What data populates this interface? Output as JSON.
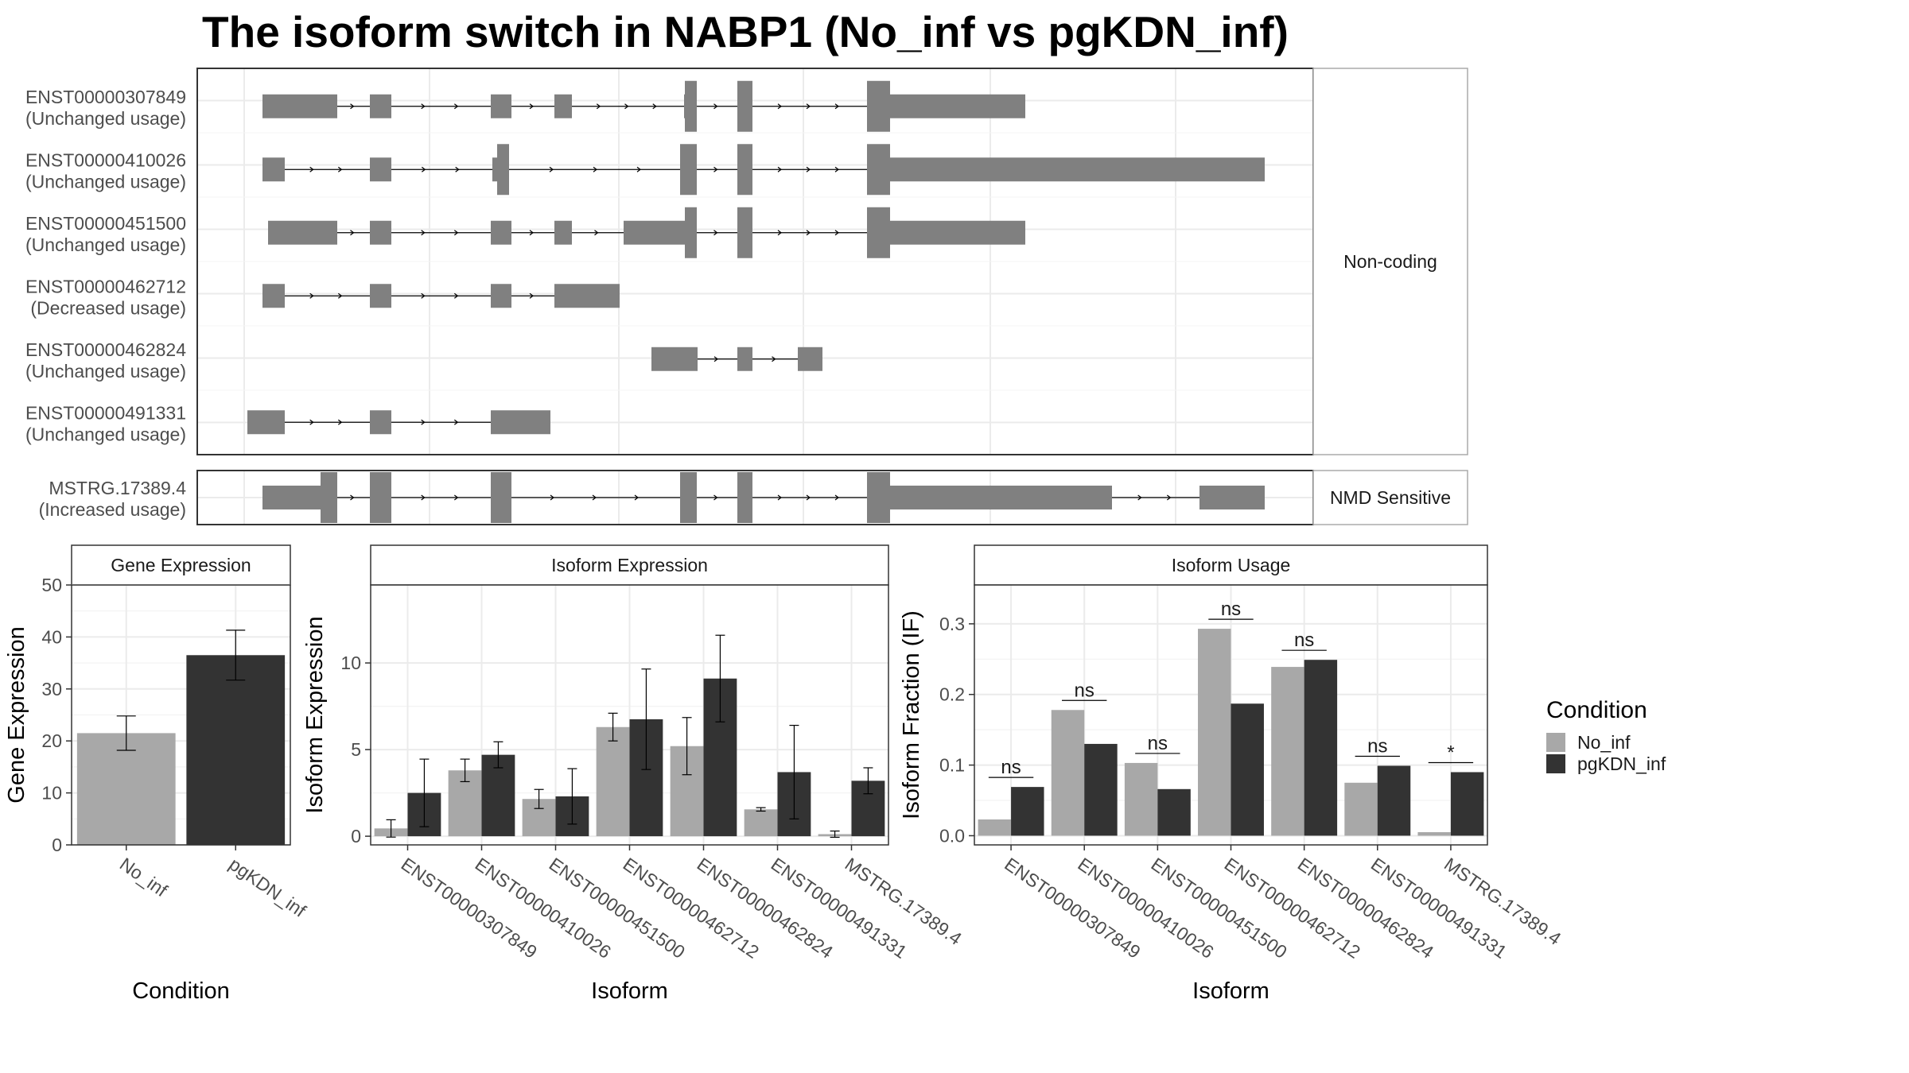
{
  "title": "The isoform switch in NABP1 (No_inf vs pgKDN_inf)",
  "colors": {
    "no_inf": "#a8a8a8",
    "pgkdn_inf": "#333333",
    "exon": "#808080",
    "grid": "#ebebeb",
    "panel_border": "#333333",
    "strip_border": "#aaaaaa",
    "axis_text": "#4d4d4d"
  },
  "chart_data": [
    {
      "type": "gene-structure",
      "facets": [
        {
          "label": "Non-coding",
          "transcripts": [
            {
              "id": "ENST00000307849",
              "usage": "(Unchanged usage)"
            },
            {
              "id": "ENST00000410026",
              "usage": "(Unchanged usage)"
            },
            {
              "id": "ENST00000451500",
              "usage": "(Unchanged usage)"
            },
            {
              "id": "ENST00000462712",
              "usage": "(Decreased usage)"
            },
            {
              "id": "ENST00000462824",
              "usage": "(Unchanged usage)"
            },
            {
              "id": "ENST00000491331",
              "usage": "(Unchanged usage)"
            }
          ]
        },
        {
          "label": "NMD Sensitive",
          "transcripts": [
            {
              "id": "MSTRG.17389.4",
              "usage": "(Increased usage)"
            }
          ]
        }
      ]
    },
    {
      "type": "bar",
      "title": "Gene Expression",
      "xlabel": "Condition",
      "ylabel": "Gene Expression",
      "ylim": [
        0,
        50
      ],
      "yticks": [
        0,
        10,
        20,
        30,
        40,
        50
      ],
      "categories": [
        "No_inf",
        "pgKDN_inf"
      ],
      "values": [
        21.5,
        36.5
      ],
      "errors": [
        3.3,
        4.8
      ]
    },
    {
      "type": "bar",
      "title": "Isoform Expression",
      "xlabel": "Isoform",
      "ylabel": "Isoform Expression",
      "ylim": [
        -0.5,
        14.5
      ],
      "yticks": [
        0,
        5,
        10
      ],
      "categories": [
        "ENST00000307849",
        "ENST00000410026",
        "ENST00000451500",
        "ENST00000462712",
        "ENST00000462824",
        "ENST00000491331",
        "MSTRG.17389.4"
      ],
      "series": [
        {
          "name": "No_inf",
          "values": [
            0.45,
            3.8,
            2.15,
            6.3,
            5.2,
            1.55,
            0.12
          ],
          "errors": [
            0.5,
            0.65,
            0.55,
            0.8,
            1.65,
            0.1,
            0.18
          ]
        },
        {
          "name": "pgKDN_inf",
          "values": [
            2.5,
            4.7,
            2.3,
            6.75,
            9.1,
            3.7,
            3.2
          ],
          "errors": [
            1.95,
            0.75,
            1.6,
            2.9,
            2.5,
            2.7,
            0.75
          ]
        }
      ]
    },
    {
      "type": "bar",
      "title": "Isoform Usage",
      "xlabel": "Isoform",
      "ylabel": "Isoform Fraction (IF)",
      "ylim": [
        -0.013,
        0.355
      ],
      "yticks": [
        0.0,
        0.1,
        0.2,
        0.3
      ],
      "ytick_labels": [
        "0.0",
        "0.1",
        "0.2",
        "0.3"
      ],
      "categories": [
        "ENST00000307849",
        "ENST00000410026",
        "ENST00000451500",
        "ENST00000462712",
        "ENST00000462824",
        "ENST00000491331",
        "MSTRG.17389.4"
      ],
      "series": [
        {
          "name": "No_inf",
          "values": [
            0.023,
            0.178,
            0.103,
            0.293,
            0.239,
            0.075,
            0.005
          ]
        },
        {
          "name": "pgKDN_inf",
          "values": [
            0.069,
            0.13,
            0.066,
            0.187,
            0.249,
            0.099,
            0.09
          ]
        }
      ],
      "significance": [
        "ns",
        "ns",
        "ns",
        "ns",
        "ns",
        "ns",
        "*"
      ]
    }
  ],
  "legend": {
    "title": "Condition",
    "entries": [
      "No_inf",
      "pgKDN_inf"
    ],
    "position": "right"
  }
}
